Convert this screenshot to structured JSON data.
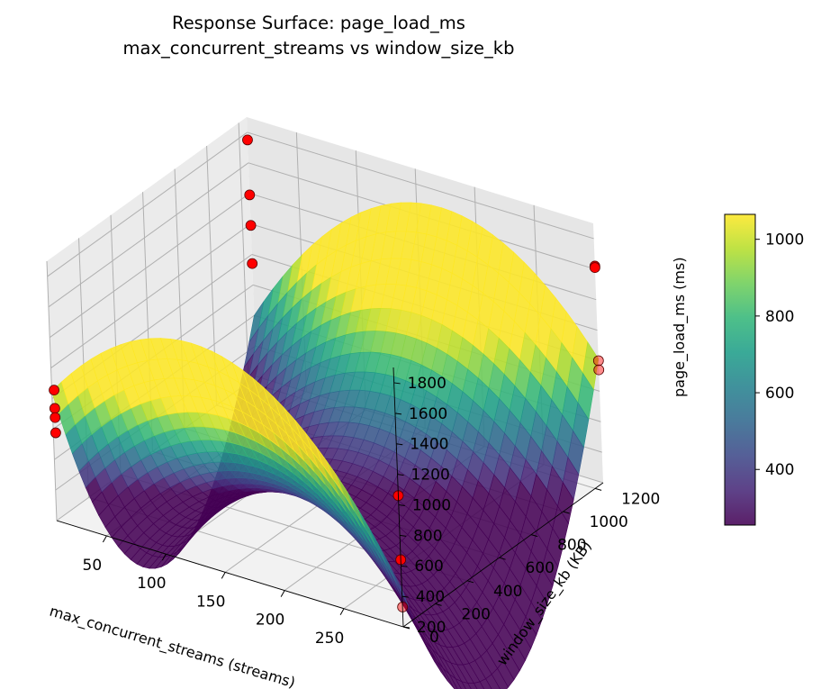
{
  "chart_data": {
    "type": "surface",
    "title": "Response Surface: page_load_ms",
    "subtitle": "max_concurrent_streams vs window_size_kb",
    "xlabel": "max_concurrent_streams (streams)",
    "ylabel": "window_size_kb (KB)",
    "zlabel": "page_load_ms (ms)",
    "xlim": [
      8,
      300
    ],
    "ylim": [
      0,
      1250
    ],
    "zlim": [
      200,
      1900
    ],
    "xticks": [
      50,
      100,
      150,
      200,
      250
    ],
    "yticks": [
      0,
      200,
      400,
      600,
      800,
      1000,
      1200
    ],
    "zticks": [
      200,
      400,
      600,
      800,
      1000,
      1200,
      1400,
      1600,
      1800
    ],
    "colormap": "viridis",
    "surface": {
      "x_range": [
        8,
        300
      ],
      "y_range": [
        0,
        1250
      ],
      "min_point": {
        "x": 150,
        "y": 620,
        "z": 255
      },
      "corner_values": {
        "x_min_y_min": 990,
        "x_min_y_max": 630,
        "x_max_y_min": 420,
        "x_max_y_max": 1065
      }
    },
    "colorbar": {
      "range": [
        255,
        1065
      ],
      "ticks": [
        400,
        600,
        800,
        1000
      ]
    },
    "points": [
      {
        "x": 8,
        "y": 1250,
        "z": 1750
      },
      {
        "x": 8,
        "y": 1250,
        "z": 1390
      },
      {
        "x": 8,
        "y": 1250,
        "z": 1190
      },
      {
        "x": 8,
        "y": 1250,
        "z": 940
      },
      {
        "x": 10,
        "y": 0,
        "z": 1060
      },
      {
        "x": 10,
        "y": 0,
        "z": 940
      },
      {
        "x": 10,
        "y": 0,
        "z": 880
      },
      {
        "x": 10,
        "y": 0,
        "z": 780
      },
      {
        "x": 300,
        "y": 1250,
        "z": 1620
      },
      {
        "x": 300,
        "y": 1250,
        "z": 1610
      },
      {
        "x": 300,
        "y": 1250,
        "z": 1000
      },
      {
        "x": 300,
        "y": 1250,
        "z": 940
      },
      {
        "x": 300,
        "y": 0,
        "z": 1060
      },
      {
        "x": 300,
        "y": 0,
        "z": 640
      },
      {
        "x": 300,
        "y": 0,
        "z": 330
      }
    ]
  }
}
